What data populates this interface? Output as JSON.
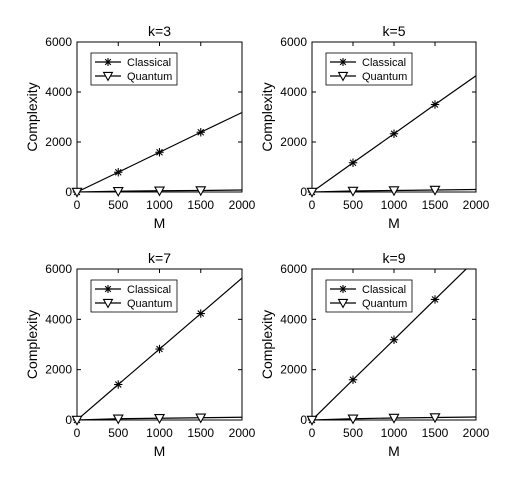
{
  "chart_data": [
    {
      "type": "line",
      "title": "k=3",
      "xlabel": "M",
      "ylabel": "Complexity",
      "xlim": [
        0,
        2000
      ],
      "ylim": [
        0,
        6000
      ],
      "xticks": [
        "0",
        "500",
        "1000",
        "1500",
        "2000"
      ],
      "yticks": [
        "0",
        "2000",
        "4000",
        "6000"
      ],
      "legend_position": "top-left",
      "series": [
        {
          "name": "Classical",
          "marker": "asterisk",
          "x": [
            0,
            500,
            1000,
            1500,
            2000
          ],
          "y": [
            0,
            790,
            1590,
            2390,
            3180
          ],
          "marker_x": [
            0,
            500,
            1000,
            1500
          ]
        },
        {
          "name": "Quantum",
          "marker": "triangle-down",
          "x": [
            0,
            500,
            1000,
            1500,
            2000
          ],
          "y": [
            0,
            30,
            50,
            60,
            80
          ],
          "marker_x": [
            0,
            500,
            1000,
            1500
          ]
        }
      ]
    },
    {
      "type": "line",
      "title": "k=5",
      "xlabel": "M",
      "ylabel": "Complexity",
      "xlim": [
        0,
        2000
      ],
      "ylim": [
        0,
        6000
      ],
      "xticks": [
        "0",
        "500",
        "1000",
        "1500",
        "2000"
      ],
      "yticks": [
        "0",
        "2000",
        "4000",
        "6000"
      ],
      "legend_position": "top-left",
      "series": [
        {
          "name": "Classical",
          "marker": "asterisk",
          "x": [
            0,
            500,
            1000,
            1500,
            2000
          ],
          "y": [
            0,
            1170,
            2330,
            3500,
            4650
          ],
          "marker_x": [
            0,
            500,
            1000,
            1500
          ]
        },
        {
          "name": "Quantum",
          "marker": "triangle-down",
          "x": [
            0,
            500,
            1000,
            1500,
            2000
          ],
          "y": [
            0,
            40,
            60,
            80,
            100
          ],
          "marker_x": [
            0,
            500,
            1000,
            1500
          ]
        }
      ]
    },
    {
      "type": "line",
      "title": "k=7",
      "xlabel": "M",
      "ylabel": "Complexity",
      "xlim": [
        0,
        2000
      ],
      "ylim": [
        0,
        6000
      ],
      "xticks": [
        "0",
        "500",
        "1000",
        "1500",
        "2000"
      ],
      "yticks": [
        "0",
        "2000",
        "4000",
        "6000"
      ],
      "legend_position": "top-left",
      "series": [
        {
          "name": "Classical",
          "marker": "asterisk",
          "x": [
            0,
            500,
            1000,
            1500,
            2000
          ],
          "y": [
            0,
            1410,
            2820,
            4230,
            5640
          ],
          "marker_x": [
            0,
            500,
            1000,
            1500
          ]
        },
        {
          "name": "Quantum",
          "marker": "triangle-down",
          "x": [
            0,
            500,
            1000,
            1500,
            2000
          ],
          "y": [
            0,
            50,
            70,
            90,
            110
          ],
          "marker_x": [
            0,
            500,
            1000,
            1500
          ]
        }
      ]
    },
    {
      "type": "line",
      "title": "k=9",
      "xlabel": "M",
      "ylabel": "Complexity",
      "xlim": [
        0,
        2000
      ],
      "ylim": [
        0,
        6000
      ],
      "xticks": [
        "0",
        "500",
        "1000",
        "1500",
        "2000"
      ],
      "yticks": [
        "0",
        "2000",
        "4000",
        "6000"
      ],
      "legend_position": "top-left",
      "series": [
        {
          "name": "Classical",
          "marker": "asterisk",
          "x": [
            0,
            500,
            1000,
            1500,
            2000
          ],
          "y": [
            0,
            1600,
            3190,
            4790,
            6380
          ],
          "marker_x": [
            0,
            500,
            1000,
            1500
          ]
        },
        {
          "name": "Quantum",
          "marker": "triangle-down",
          "x": [
            0,
            500,
            1000,
            1500,
            2000
          ],
          "y": [
            0,
            50,
            80,
            100,
            120
          ],
          "marker_x": [
            0,
            500,
            1000,
            1500
          ]
        }
      ]
    }
  ]
}
